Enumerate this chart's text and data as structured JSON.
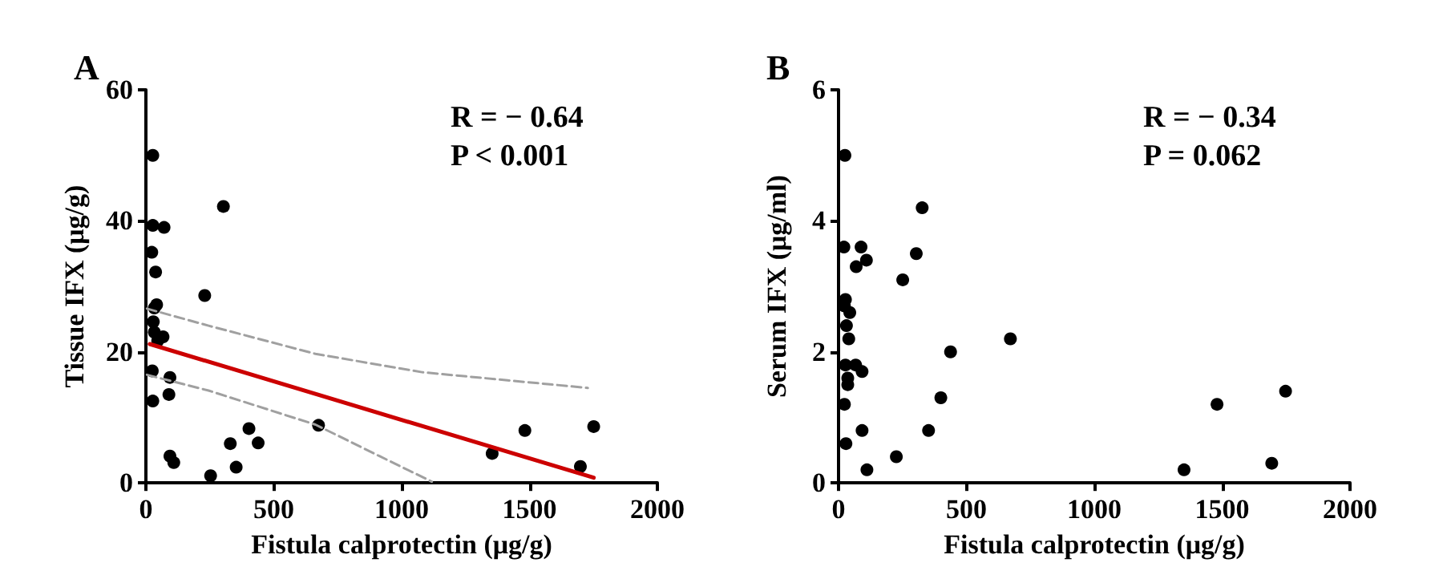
{
  "chart_data": [
    {
      "type": "scatter",
      "title": "A",
      "xlabel": "Fistula calprotectin (μg/g)",
      "ylabel": "Tissue IFX (μg/g)",
      "annotations": [
        "R = − 0.64",
        "P < 0.001"
      ],
      "xlim": [
        0,
        2000
      ],
      "xticks": [
        0,
        500,
        1000,
        1500,
        2000
      ],
      "ylim": [
        0,
        60
      ],
      "yticks": [
        0,
        20,
        40,
        60
      ],
      "marker": "circle",
      "series": [
        {
          "color": "#000000",
          "x": [
            27,
            27,
            71,
            23,
            38,
            230,
            303,
            42,
            33,
            29,
            33,
            46,
            67,
            25,
            94,
            90,
            27,
            94,
            109,
            253,
            330,
            353,
            403,
            439,
            675,
            1354,
            1482,
            1699,
            1751
          ],
          "values": [
            50,
            39.3,
            39,
            35.2,
            32.2,
            28.6,
            42.2,
            27.2,
            26.7,
            24.6,
            23,
            21.7,
            22.3,
            17.1,
            16.1,
            13.5,
            12.5,
            4.1,
            3.1,
            1.1,
            6.0,
            2.4,
            8.3,
            6.1,
            8.8,
            4.5,
            8.0,
            2.5,
            8.6
          ]
        },
        {
          "type": "line",
          "color": "#cc0000",
          "line_style": "solid",
          "marker": "none",
          "x": [
            15,
            1751
          ],
          "values": [
            21.2,
            0.8
          ]
        },
        {
          "type": "line",
          "color": "#a0a0a0",
          "line_style": "dashed",
          "marker": "none",
          "x": [
            4,
            245,
            663,
            1080,
            1728
          ],
          "values": [
            26.6,
            24.0,
            19.7,
            16.9,
            14.5
          ]
        },
        {
          "type": "line",
          "color": "#a0a0a0",
          "line_style": "dashed",
          "marker": "none",
          "x": [
            4,
            245,
            663,
            913,
            1118
          ],
          "values": [
            16.5,
            14.1,
            8.9,
            4.1,
            0.2
          ]
        }
      ]
    },
    {
      "type": "scatter",
      "title": "B",
      "xlabel": "Fistula calprotectin (μg/g)",
      "ylabel": "Serum IFX (μg/ml)",
      "annotations": [
        "R = − 0.34",
        "P = 0.062"
      ],
      "xlim": [
        0,
        2000
      ],
      "xticks": [
        0,
        500,
        1000,
        1500,
        2000
      ],
      "ylim": [
        0,
        6
      ],
      "yticks": [
        0,
        2,
        4,
        6
      ],
      "marker": "circle",
      "series": [
        {
          "color": "#000000",
          "x": [
            25,
            21,
            88,
            109,
            69,
            327,
            304,
            251,
            27,
            23,
            44,
            31,
            40,
            27,
            67,
            92,
            36,
            36,
            23,
            29,
            92,
            111,
            226,
            352,
            400,
            438,
            672,
            1351,
            1480,
            1694,
            1748
          ],
          "values": [
            5.0,
            3.6,
            3.6,
            3.4,
            3.3,
            4.2,
            3.5,
            3.1,
            2.8,
            2.7,
            2.6,
            2.4,
            2.2,
            1.8,
            1.8,
            1.7,
            1.6,
            1.5,
            1.2,
            0.6,
            0.8,
            0.2,
            0.4,
            0.8,
            1.3,
            2.0,
            2.2,
            0.2,
            1.2,
            0.3,
            1.4
          ]
        }
      ]
    }
  ]
}
